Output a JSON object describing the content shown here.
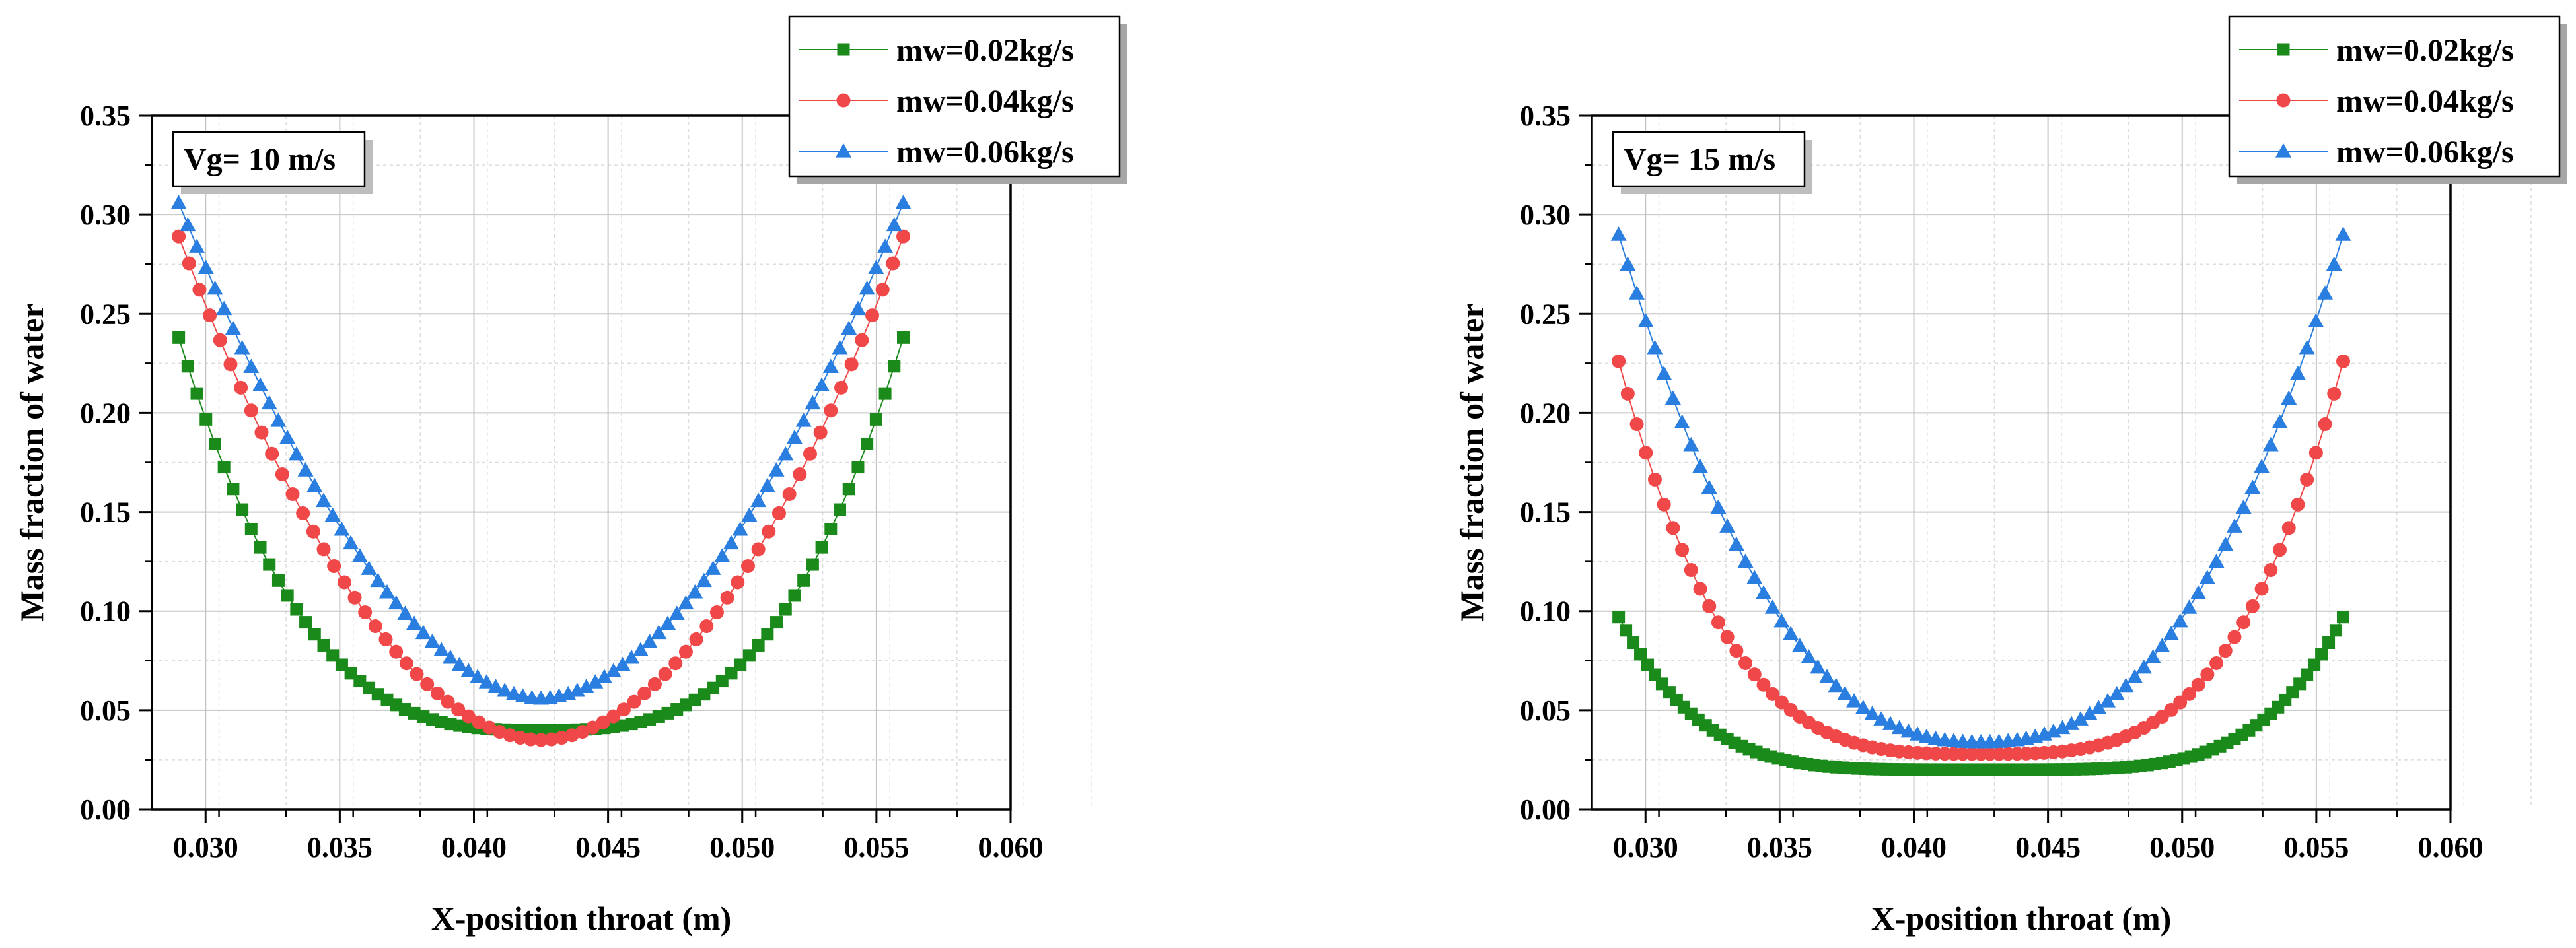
{
  "chart_data": [
    {
      "type": "line",
      "annotation": "Vg= 10 m/s",
      "xlabel": "X-position throat (m)",
      "ylabel": "Mass fraction of water",
      "xlim": [
        0.028,
        0.06
      ],
      "ylim": [
        0,
        0.35
      ],
      "xticks": [
        "0.030",
        "0.035",
        "0.040",
        "0.045",
        "0.050",
        "0.055",
        "0.060"
      ],
      "yticks": [
        "0.00",
        "0.05",
        "0.10",
        "0.15",
        "0.20",
        "0.25",
        "0.30",
        "0.35"
      ],
      "grid": true,
      "legend_position": "top-right, above plot",
      "series": [
        {
          "name": "mw=0.02kg/s",
          "color": "#1a8a1a",
          "marker": "square",
          "x_start": 0.029,
          "x_end": 0.056,
          "points": 81,
          "min_value": 0.04,
          "end_value": 0.238,
          "shape": 3.0
        },
        {
          "name": "mw=0.04kg/s",
          "color": "#f04848",
          "marker": "circle",
          "x_start": 0.029,
          "x_end": 0.056,
          "points": 71,
          "min_value": 0.035,
          "end_value": 0.289,
          "shape": 1.9
        },
        {
          "name": "mw=0.06kg/s",
          "color": "#2a7ee0",
          "marker": "triangle",
          "x_start": 0.029,
          "x_end": 0.056,
          "points": 81,
          "min_value": 0.056,
          "end_value": 0.306,
          "shape": 1.8
        }
      ]
    },
    {
      "type": "line",
      "annotation": "Vg= 15 m/s",
      "xlabel": "X-position throat (m)",
      "ylabel": "Mass fraction of water",
      "xlim": [
        0.028,
        0.06
      ],
      "ylim": [
        0,
        0.35
      ],
      "xticks": [
        "0.030",
        "0.035",
        "0.040",
        "0.045",
        "0.050",
        "0.055",
        "0.060"
      ],
      "yticks": [
        "0.00",
        "0.05",
        "0.10",
        "0.15",
        "0.20",
        "0.25",
        "0.30",
        "0.35"
      ],
      "grid": true,
      "legend_position": "top-right, above plot",
      "series": [
        {
          "name": "mw=0.02kg/s",
          "color": "#1a8a1a",
          "marker": "square",
          "x_start": 0.029,
          "x_end": 0.056,
          "points": 101,
          "min_value": 0.02,
          "end_value": 0.097,
          "shape": 4.5
        },
        {
          "name": "mw=0.04kg/s",
          "color": "#f04848",
          "marker": "circle",
          "x_start": 0.029,
          "x_end": 0.056,
          "points": 81,
          "min_value": 0.028,
          "end_value": 0.226,
          "shape": 3.4
        },
        {
          "name": "mw=0.06kg/s",
          "color": "#2a7ee0",
          "marker": "triangle",
          "x_start": 0.029,
          "x_end": 0.056,
          "points": 81,
          "min_value": 0.034,
          "end_value": 0.29,
          "shape": 2.4
        }
      ]
    }
  ]
}
